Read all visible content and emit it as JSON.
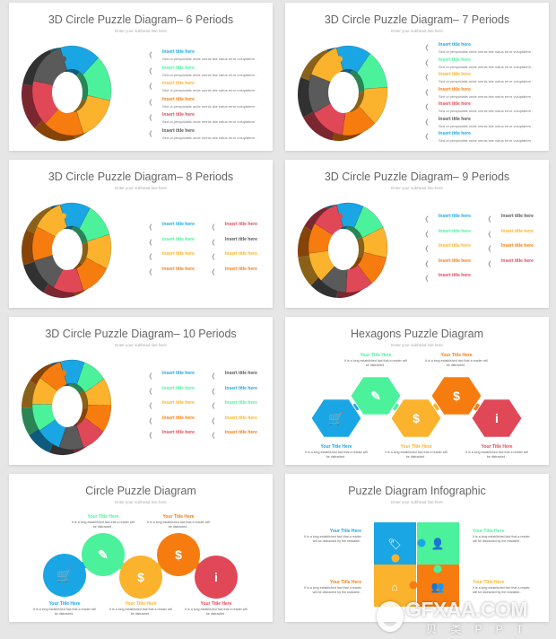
{
  "colors": {
    "blue": "#1aa6e4",
    "green": "#4cf29b",
    "yellow": "#fbb22c",
    "orange": "#f77c10",
    "red": "#e04858",
    "gray": "#5a5a5a",
    "text_gray": "#555555"
  },
  "subhead": "Enter your subhead line here",
  "ring_slides": [
    {
      "title": "3D Circle Puzzle Diagram– 6 Periods",
      "segments": [
        "blue",
        "green",
        "yellow",
        "orange",
        "red",
        "gray"
      ],
      "columns": [
        [
          {
            "title": "Insert title here",
            "color": "blue",
            "desc": "Sed ut perspiciatis unde omnis iste natus error voluptatem ."
          },
          {
            "title": "Insert title here",
            "color": "green",
            "desc": "Sed ut perspiciatis unde omnis iste natus error voluptatem ."
          },
          {
            "title": "Insert title here",
            "color": "yellow",
            "desc": "Sed ut perspiciatis unde omnis iste natus error voluptatem ."
          },
          {
            "title": "Insert title here",
            "color": "orange",
            "desc": "Sed ut perspiciatis unde omnis iste natus error voluptatem ."
          },
          {
            "title": "Insert title here",
            "color": "red",
            "desc": "Sed ut perspiciatis unde omnis iste natus error voluptatem ."
          },
          {
            "title": "Insert title here",
            "color": "text_gray",
            "desc": "Sed ut perspiciatis unde omnis iste natus error voluptatem ."
          }
        ]
      ]
    },
    {
      "title": "3D Circle Puzzle Diagram– 7 Periods",
      "segments": [
        "blue",
        "green",
        "yellow",
        "orange",
        "red",
        "gray",
        "yellow"
      ],
      "columns": [
        [
          {
            "title": "Insert title here",
            "color": "blue",
            "desc": "Sed ut perspiciatis unde omnis iste natus error voluptatem ."
          },
          {
            "title": "Insert title here",
            "color": "green",
            "desc": "Sed ut perspiciatis unde omnis iste natus error voluptatem ."
          },
          {
            "title": "Insert title here",
            "color": "yellow",
            "desc": "Sed ut perspiciatis unde omnis iste natus error voluptatem ."
          },
          {
            "title": "Insert title here",
            "color": "orange",
            "desc": "Sed ut perspiciatis unde omnis iste natus error voluptatem ."
          },
          {
            "title": "Insert title here",
            "color": "red",
            "desc": "Sed ut perspiciatis unde omnis iste natus error voluptatem ."
          },
          {
            "title": "Insert title here",
            "color": "text_gray",
            "desc": "Sed ut perspiciatis unde omnis iste natus error voluptatem ."
          },
          {
            "title": "Insert title here",
            "color": "blue",
            "desc": "Sed ut perspiciatis unde omnis iste natus error voluptatem ."
          }
        ]
      ]
    },
    {
      "title": "3D Circle Puzzle Diagram– 8 Periods",
      "segments": [
        "blue",
        "green",
        "yellow",
        "orange",
        "red",
        "gray",
        "orange",
        "yellow"
      ],
      "columns": [
        [
          {
            "title": "Insert title here",
            "color": "blue"
          },
          {
            "title": "Insert title here",
            "color": "green"
          },
          {
            "title": "Insert title here",
            "color": "yellow"
          },
          {
            "title": "Insert title here",
            "color": "orange"
          }
        ],
        [
          {
            "title": "Insert title here",
            "color": "red"
          },
          {
            "title": "Insert title here",
            "color": "text_gray"
          },
          {
            "title": "Insert title here",
            "color": "yellow"
          },
          {
            "title": "Insert title here",
            "color": "orange"
          }
        ]
      ]
    },
    {
      "title": "3D Circle Puzzle Diagram– 9 Periods",
      "segments": [
        "blue",
        "green",
        "yellow",
        "orange",
        "red",
        "gray",
        "yellow",
        "orange",
        "red"
      ],
      "columns": [
        [
          {
            "title": "Insert title here",
            "color": "blue"
          },
          {
            "title": "Insert title here",
            "color": "green"
          },
          {
            "title": "Insert title here",
            "color": "yellow"
          },
          {
            "title": "Insert title here",
            "color": "orange"
          },
          {
            "title": "Insert title here",
            "color": "red"
          }
        ],
        [
          {
            "title": "Insert title here",
            "color": "text_gray"
          },
          {
            "title": "Insert title here",
            "color": "yellow"
          },
          {
            "title": "Insert title here",
            "color": "orange"
          },
          {
            "title": "Insert title here",
            "color": "red"
          }
        ]
      ]
    },
    {
      "title": "3D Circle Puzzle Diagram– 10 Periods",
      "segments": [
        "blue",
        "green",
        "yellow",
        "orange",
        "red",
        "gray",
        "blue",
        "green",
        "yellow",
        "orange"
      ],
      "columns": [
        [
          {
            "title": "Insert title here",
            "color": "blue"
          },
          {
            "title": "Insert title here",
            "color": "green"
          },
          {
            "title": "Insert title here",
            "color": "yellow"
          },
          {
            "title": "Insert title here",
            "color": "orange"
          },
          {
            "title": "Insert title here",
            "color": "red"
          }
        ],
        [
          {
            "title": "Insert title here",
            "color": "text_gray"
          },
          {
            "title": "Insert title here",
            "color": "blue"
          },
          {
            "title": "Insert title here",
            "color": "green"
          },
          {
            "title": "Insert title here",
            "color": "yellow"
          },
          {
            "title": "Insert title here",
            "color": "orange"
          }
        ]
      ]
    }
  ],
  "hexagon_slide": {
    "title": "Hexagons Puzzle Diagram",
    "items": [
      {
        "title": "Your Title Here",
        "desc": "It is a long established fact that a reader will be distracted .",
        "color": "blue",
        "icon": "shopping-cart-icon"
      },
      {
        "title": "Your Title Here",
        "desc": "It is a long established fact that a reader will be distracted .",
        "color": "green",
        "icon": "ruler-pencil-icon"
      },
      {
        "title": "Your Title Here",
        "desc": "It is a long established fact that a reader will be distracted .",
        "color": "yellow",
        "icon": "head-dollar-icon"
      },
      {
        "title": "Your Title Here",
        "desc": "It is a long established fact that a reader will be distracted .",
        "color": "orange",
        "icon": "investor-growth-icon"
      },
      {
        "title": "Your Title Here",
        "desc": "It is a long established fact that a reader will be distracted .",
        "color": "red",
        "icon": "info-person-icon"
      }
    ]
  },
  "circle_slide": {
    "title": "Circle Puzzle Diagram",
    "items": [
      {
        "title": "Your Title Here",
        "desc": "It is a long established fact that a reader will be distracted .",
        "color": "blue",
        "icon": "shopping-cart-icon"
      },
      {
        "title": "Your Title Here",
        "desc": "It is a long established fact that a reader will be distracted .",
        "color": "green",
        "icon": "ruler-pencil-icon"
      },
      {
        "title": "Your Title Here",
        "desc": "It is a long established fact that a reader will be distracted .",
        "color": "yellow",
        "icon": "head-dollar-icon"
      },
      {
        "title": "Your Title Here",
        "desc": "It is a long established fact that a reader will be distracted .",
        "color": "orange",
        "icon": "investor-growth-icon"
      },
      {
        "title": "Your Title Here",
        "desc": "It is a long established fact that a reader will be distracted .",
        "color": "red",
        "icon": "info-person-icon"
      }
    ]
  },
  "infographic_slide": {
    "title": "Puzzle Diagram Infographic",
    "items": [
      {
        "title": "Your Title Here",
        "desc": "It is a long established fact that a reader will be distracted by the readable .",
        "color": "blue",
        "icon": "price-tag-icon"
      },
      {
        "title": "Your Title Here",
        "desc": "It is a long established fact that a reader will be distracted by the readable .",
        "color": "green",
        "icon": "user-icon"
      },
      {
        "title": "Your Title Here",
        "desc": "It is a long established fact that a reader will be distracted by the readable .",
        "color": "orange",
        "icon": "house-icon"
      },
      {
        "title": "Your Title Here",
        "desc": "It is a long established fact that a reader will be distracted by the readable .",
        "color": "yellow",
        "icon": "team-icon"
      }
    ]
  },
  "watermark": {
    "text": "GFXAA.COM",
    "subtext": "贝 类 P P T"
  }
}
